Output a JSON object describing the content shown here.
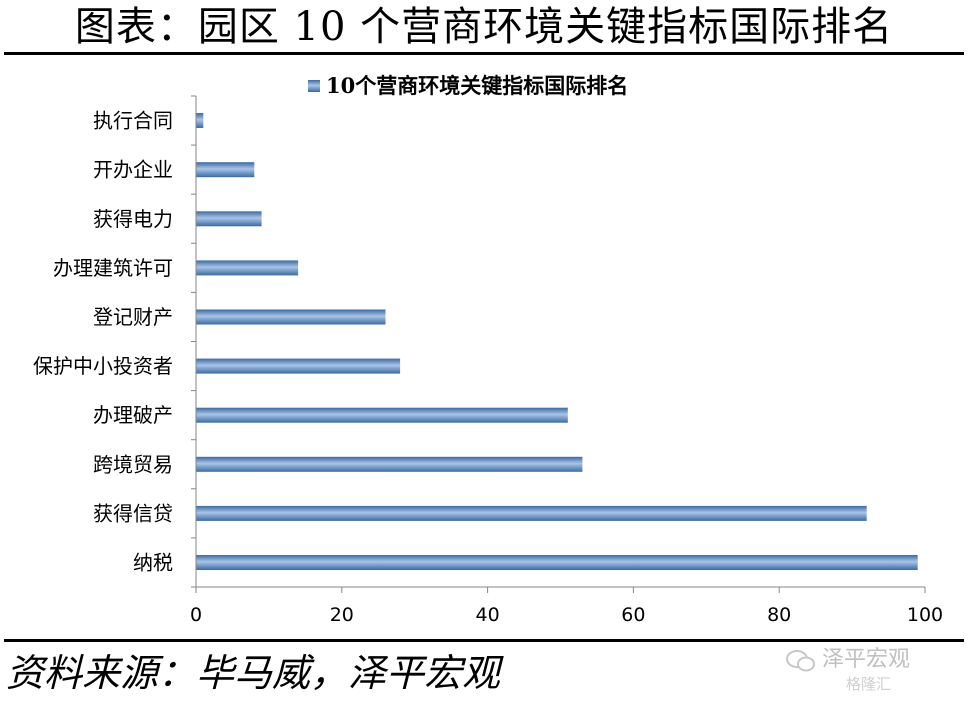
{
  "page_title": "图表：园区 10 个营商环境关键指标国际排名",
  "source_text": "资料来源：毕马威，泽平宏观",
  "watermark": {
    "line1": "泽平宏观",
    "line2": "格隆汇"
  },
  "colors": {
    "bar_fill": "#4f81bd",
    "bar_light": "#a9c4e6",
    "bar_dark": "#3a6aa4",
    "axis": "#868686"
  },
  "chart_data": {
    "type": "bar",
    "orientation": "horizontal",
    "title": "",
    "legend": {
      "label": "10个营商环境关键指标国际排名",
      "position": "top"
    },
    "categories": [
      "执行合同",
      "开办企业",
      "获得电力",
      "办理建筑许可",
      "登记财产",
      "保护中小投资者",
      "办理破产",
      "跨境贸易",
      "获得信贷",
      "纳税"
    ],
    "series": [
      {
        "name": "10个营商环境关键指标国际排名",
        "values": [
          1,
          8,
          9,
          14,
          26,
          28,
          51,
          53,
          92,
          99
        ]
      }
    ],
    "xlim": [
      0,
      100
    ],
    "xticks": [
      "0",
      "20",
      "40",
      "60",
      "80",
      "100"
    ],
    "grid": false
  }
}
